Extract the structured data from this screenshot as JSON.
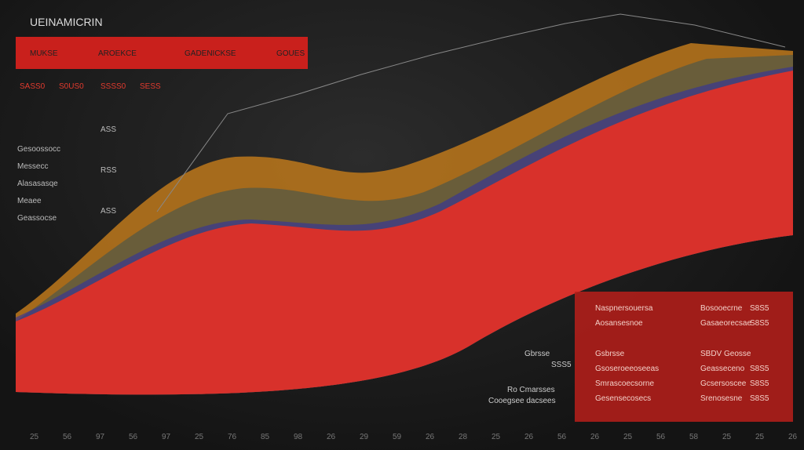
{
  "header": {
    "title": "UEINAMICRIN",
    "tabs": [
      "MUKSE",
      "AROEKCE",
      "GADENICKSE",
      "GOUES"
    ]
  },
  "summary": [
    "SASS0",
    "S0US0",
    "SSSS0",
    "SESS"
  ],
  "side_labels": [
    "Gesoossocc",
    "Messecc",
    "Alasasasqe",
    "Meaee",
    "Geassocse"
  ],
  "mid_labels": [
    "ASS",
    "RSS",
    "ASS"
  ],
  "panel": {
    "rows": [
      [
        "Naspnersouersa",
        "Bosooecrne",
        "S8S5"
      ],
      [
        "Aosansesnoe",
        "Gasaeorecsae",
        "S8S5"
      ],
      [
        "Gsbrsse",
        "SBDV Geosse",
        ""
      ],
      [
        "Gsoseroeeoseeas",
        "Geasseceno",
        "S8S5"
      ],
      [
        "Smrascoecsorne",
        "Gcsersoscee",
        "S8S5"
      ],
      [
        "Gesensecosecs",
        "Srenosesne",
        "S8S5"
      ]
    ]
  },
  "notes": [
    "Gbrsse",
    "SSS5",
    "Ro Cmarsses",
    "Cooegsee dacsees"
  ],
  "footer_ticks": [
    "25",
    "56",
    "97",
    "56",
    "97",
    "25",
    "76",
    "85",
    "98",
    "26",
    "29",
    "59",
    "26",
    "28",
    "25",
    "26",
    "56",
    "26",
    "25",
    "56",
    "58",
    "25",
    "25",
    "26"
  ]
}
